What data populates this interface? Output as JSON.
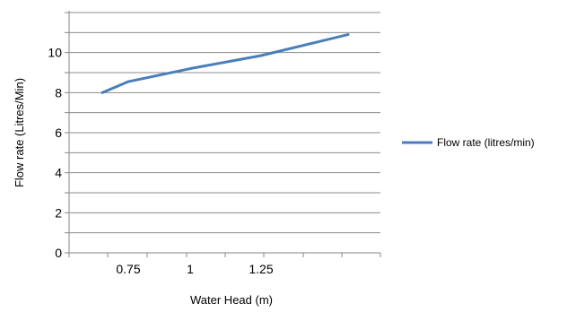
{
  "chart_data": {
    "type": "line",
    "title": "",
    "xlabel": "Water Head (m)",
    "ylabel": "Flow rate (Litres/Min)",
    "x_tick_labels": [
      "0.75",
      "1",
      "1.25"
    ],
    "y_tick_labels": [
      "0",
      "2",
      "4",
      "6",
      "8",
      "10"
    ],
    "ylim": [
      0,
      12
    ],
    "grid": "horizontal",
    "legend_position": "right",
    "series": [
      {
        "name": "Flow rate (litres/min)",
        "color": "#4a7ebb",
        "x": [
          0.6,
          0.75,
          1.0,
          1.25,
          1.5
        ],
        "values": [
          8.0,
          8.55,
          9.2,
          9.85,
          10.9
        ]
      }
    ]
  }
}
